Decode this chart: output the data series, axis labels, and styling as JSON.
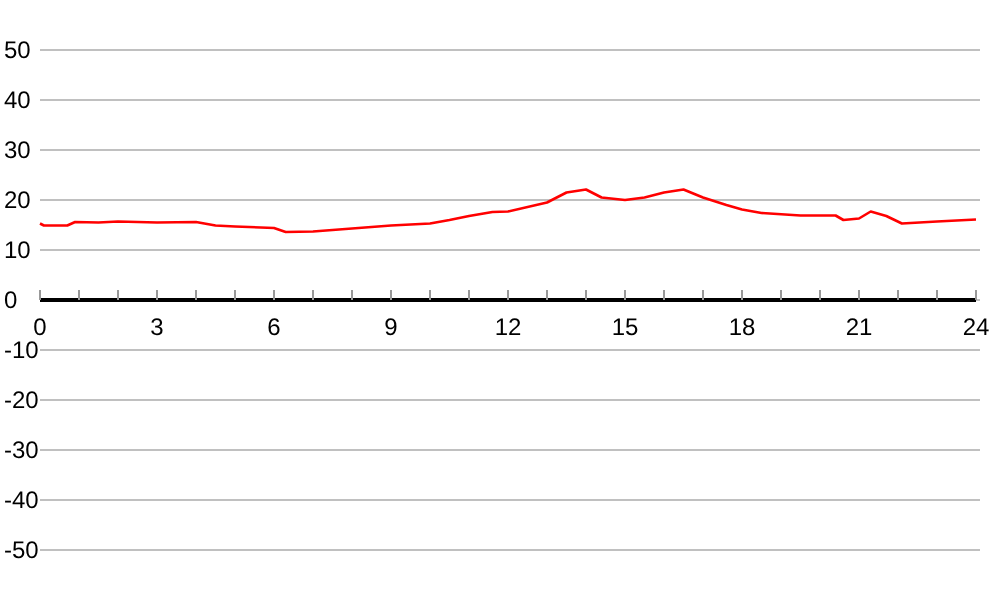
{
  "chart_data": {
    "type": "line",
    "x": [
      0,
      0.1,
      0.7,
      0.9,
      1.5,
      2,
      3,
      4,
      4.5,
      5,
      6,
      6.3,
      7,
      8,
      9,
      10,
      10.5,
      11,
      11.6,
      12,
      13,
      13.5,
      14,
      14.4,
      15,
      15.5,
      16,
      16.5,
      17,
      17.6,
      18,
      18.5,
      19.5,
      20.4,
      20.6,
      21,
      21.3,
      21.7,
      22.1,
      23,
      24
    ],
    "series": [
      {
        "color": "#ff0000",
        "values": [
          15.3,
          14.9,
          14.9,
          15.6,
          15.5,
          15.7,
          15.5,
          15.6,
          14.9,
          14.7,
          14.4,
          13.6,
          13.7,
          14.3,
          14.9,
          15.3,
          16,
          16.8,
          17.6,
          17.7,
          19.5,
          21.5,
          22.1,
          20.5,
          20,
          20.5,
          21.5,
          22.1,
          20.5,
          19,
          18.1,
          17.4,
          16.9,
          16.9,
          16,
          16.3,
          17.7,
          16.8,
          15.3,
          15.7,
          16.1
        ]
      }
    ],
    "xlim": [
      0,
      24
    ],
    "xticks": [
      0,
      {
        "value": 1,
        "label": null
      },
      {
        "value": 2,
        "label": null
      },
      3,
      {
        "value": 4,
        "label": null
      },
      {
        "value": 5,
        "label": null
      },
      6,
      {
        "value": 7,
        "label": null
      },
      {
        "value": 8,
        "label": null
      },
      9,
      {
        "value": 10,
        "label": null
      },
      {
        "value": 11,
        "label": null
      },
      12,
      {
        "value": 13,
        "label": null
      },
      {
        "value": 14,
        "label": null
      },
      15,
      {
        "value": 16,
        "label": null
      },
      {
        "value": 17,
        "label": null
      },
      18,
      {
        "value": 19,
        "label": null
      },
      {
        "value": 20,
        "label": null
      },
      21,
      {
        "value": 22,
        "label": null
      },
      {
        "value": 23,
        "label": null
      },
      24
    ],
    "ylim": [
      -50,
      50
    ],
    "yticks": [
      -50,
      -40,
      -30,
      -20,
      -10,
      0,
      10,
      20,
      30,
      40,
      50
    ],
    "grid": "y",
    "marker": "none",
    "line_style": "solid"
  }
}
